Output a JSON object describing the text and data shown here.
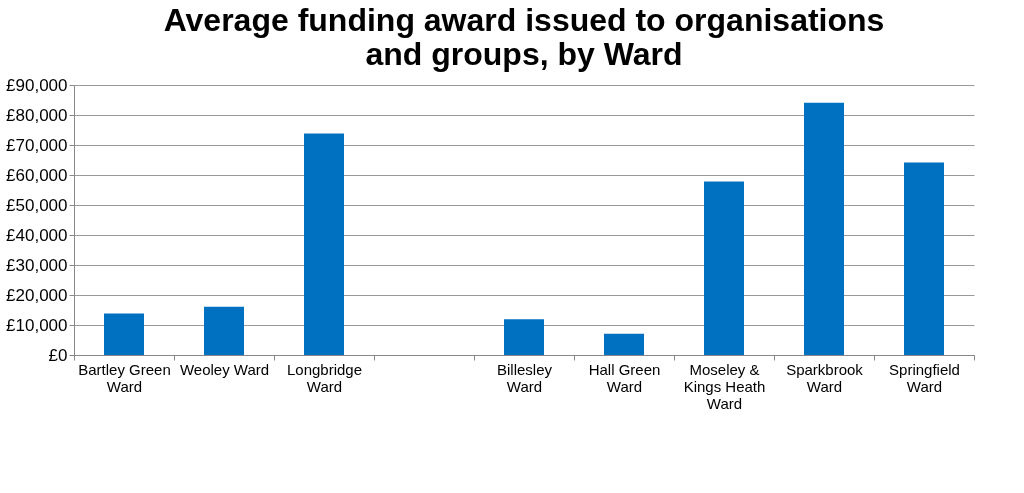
{
  "chart_data": {
    "type": "bar",
    "title": "Average funding award issued to organisations and groups, by Ward",
    "categories": [
      "Bartley Green Ward",
      "Weoley Ward",
      "Longbridge Ward",
      null,
      "Billesley Ward",
      "Hall Green Ward",
      "Moseley & Kings Heath Ward",
      "Sparkbrook Ward",
      "Springfield Ward"
    ],
    "values": [
      13800,
      16100,
      73800,
      null,
      11900,
      7100,
      57800,
      84100,
      64200
    ],
    "color": "#0070c0",
    "ylim": [
      0,
      90000
    ],
    "yticks": [
      {
        "value": 0,
        "label": "£0"
      },
      {
        "value": 10000,
        "label": "£10,000"
      },
      {
        "value": 20000,
        "label": "£20,000"
      },
      {
        "value": 30000,
        "label": "£30,000"
      },
      {
        "value": 40000,
        "label": "£40,000"
      },
      {
        "value": 50000,
        "label": "£50,000"
      },
      {
        "value": 60000,
        "label": "£60,000"
      },
      {
        "value": 70000,
        "label": "£70,000"
      },
      {
        "value": 80000,
        "label": "£80,000"
      },
      {
        "value": 90000,
        "label": "£90,000"
      }
    ],
    "grid": "y"
  }
}
